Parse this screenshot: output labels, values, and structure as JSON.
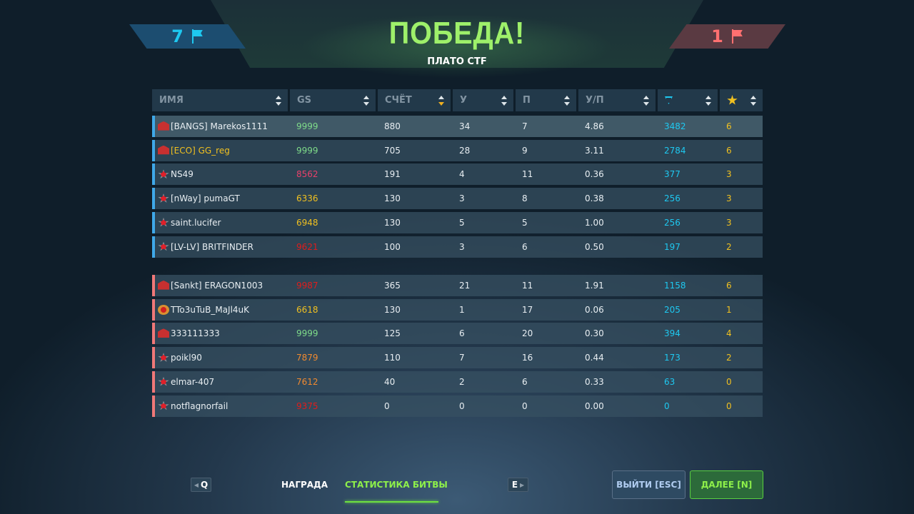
{
  "header": {
    "title": "ПОБЕДА!",
    "map": "ПЛАТО CTF",
    "blue_score": "7",
    "red_score": "1",
    "flag_icon": "flag-icon"
  },
  "columns": [
    {
      "label": "ИМЯ"
    },
    {
      "label": "GS"
    },
    {
      "label": "СЧЁТ",
      "sorted": "desc"
    },
    {
      "label": "У"
    },
    {
      "label": "П"
    },
    {
      "label": "У/П"
    },
    {
      "label": "",
      "icon": "crystal-icon"
    },
    {
      "label": "",
      "icon": "star-icon"
    }
  ],
  "colors": {
    "blue_team": "#3fa8e8",
    "red_team": "#f07878",
    "accent_green": "#9ef06a",
    "crystals": "#1ec8f0",
    "stars": "#f0c020"
  },
  "blue_team": [
    {
      "rank": "winged",
      "name": "[BANGS] Marekos1111",
      "gs": "9999",
      "gs_color": "#7fdc8a",
      "score": "880",
      "k": "34",
      "d": "7",
      "kd": "4.86",
      "crystals": "3482",
      "stars": "6"
    },
    {
      "rank": "winged",
      "name": "[ECO] GG_reg",
      "name_color": "#f0c020",
      "gs": "9999",
      "gs_color": "#7fdc8a",
      "score": "705",
      "k": "28",
      "d": "9",
      "kd": "3.11",
      "crystals": "2784",
      "stars": "6"
    },
    {
      "rank": "star",
      "name": "NS49",
      "gs": "8562",
      "gs_color": "#e8406a",
      "score": "191",
      "k": "4",
      "d": "11",
      "kd": "0.36",
      "crystals": "377",
      "stars": "3"
    },
    {
      "rank": "star",
      "name": "[nWay] pumaGT",
      "gs": "6336",
      "gs_color": "#f0c020",
      "score": "130",
      "k": "3",
      "d": "8",
      "kd": "0.38",
      "crystals": "256",
      "stars": "3"
    },
    {
      "rank": "star",
      "name": "saint.lucifer",
      "gs": "6948",
      "gs_color": "#f0c020",
      "score": "130",
      "k": "5",
      "d": "5",
      "kd": "1.00",
      "crystals": "256",
      "stars": "3"
    },
    {
      "rank": "star",
      "name": "[LV-LV] BRITFINDER",
      "gs": "9621",
      "gs_color": "#e01c1c",
      "score": "100",
      "k": "3",
      "d": "6",
      "kd": "0.50",
      "crystals": "197",
      "stars": "2"
    }
  ],
  "red_team": [
    {
      "rank": "winged",
      "name": "[Sankt] ERAGON1003",
      "gs": "9987",
      "gs_color": "#e01c1c",
      "score": "365",
      "k": "21",
      "d": "11",
      "kd": "1.91",
      "crystals": "1158",
      "stars": "6"
    },
    {
      "rank": "gold",
      "name": "TTo3uTuB_MaJl4uK",
      "gs": "6618",
      "gs_color": "#f0c020",
      "score": "130",
      "k": "1",
      "d": "17",
      "kd": "0.06",
      "crystals": "205",
      "stars": "1"
    },
    {
      "rank": "winged",
      "name": "333111333",
      "gs": "9999",
      "gs_color": "#7fdc8a",
      "score": "125",
      "k": "6",
      "d": "20",
      "kd": "0.30",
      "crystals": "394",
      "stars": "4"
    },
    {
      "rank": "star",
      "name": "poikl90",
      "gs": "7879",
      "gs_color": "#f08a30",
      "score": "110",
      "k": "7",
      "d": "16",
      "kd": "0.44",
      "crystals": "173",
      "stars": "2"
    },
    {
      "rank": "star",
      "name": "elmar-407",
      "gs": "7612",
      "gs_color": "#f08a30",
      "score": "40",
      "k": "2",
      "d": "6",
      "kd": "0.33",
      "crystals": "63",
      "stars": "0"
    },
    {
      "rank": "star",
      "name": "notflagnorfail",
      "gs": "9375",
      "gs_color": "#e01c1c",
      "score": "0",
      "k": "0",
      "d": "0",
      "kd": "0.00",
      "crystals": "0",
      "stars": "0"
    }
  ],
  "footer": {
    "prev_key": "Q",
    "next_key": "E",
    "tab_reward": "НАГРАДА",
    "tab_stats": "СТАТИСТИКА БИТВЫ",
    "exit": "ВЫЙТИ [ESC]",
    "next": "ДАЛЕЕ [N]"
  }
}
